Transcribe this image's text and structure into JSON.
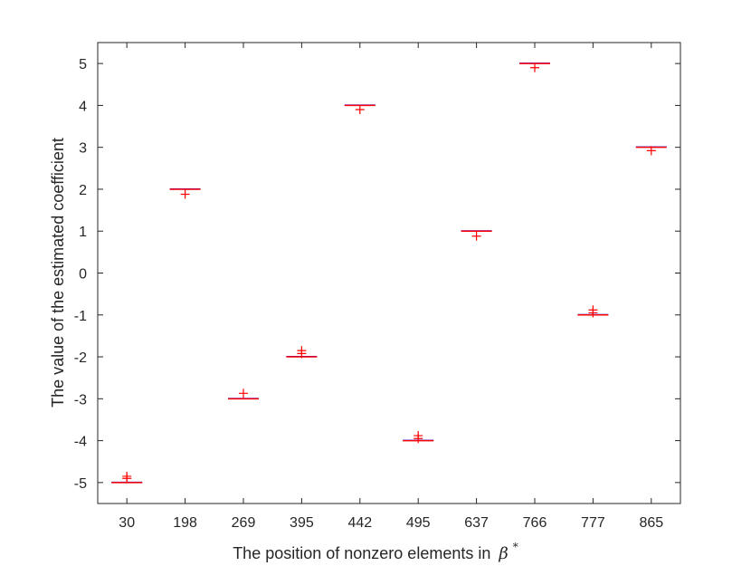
{
  "chart_data": {
    "type": "box",
    "title": "",
    "xlabel": "The position of nonzero elements in",
    "xlabel_symbol": "β",
    "xlabel_superscript": "*",
    "ylabel": "The value of the estimated coefficient",
    "categories": [
      "30",
      "198",
      "269",
      "395",
      "442",
      "495",
      "637",
      "766",
      "777",
      "865"
    ],
    "medians": [
      -5,
      2,
      -3,
      -2,
      4,
      -4,
      1,
      5,
      -1,
      3
    ],
    "outliers": [
      [
        -4.85,
        -4.9
      ],
      [
        1.88
      ],
      [
        -2.87
      ],
      [
        -1.85,
        -1.92
      ],
      [
        3.9
      ],
      [
        -3.88,
        -3.95
      ],
      [
        0.88
      ],
      [
        4.9
      ],
      [
        -0.88,
        -0.95
      ],
      [
        2.92
      ]
    ],
    "ylim": [
      -5.5,
      5.5
    ],
    "yticks": [
      "-5",
      "-4",
      "-3",
      "-2",
      "-1",
      "0",
      "1",
      "2",
      "3",
      "4",
      "5"
    ],
    "grid": false,
    "colors": {
      "box": "#0000ff",
      "median": "#ff0000",
      "outlier": "#ff0000",
      "axis": "#262626"
    }
  }
}
